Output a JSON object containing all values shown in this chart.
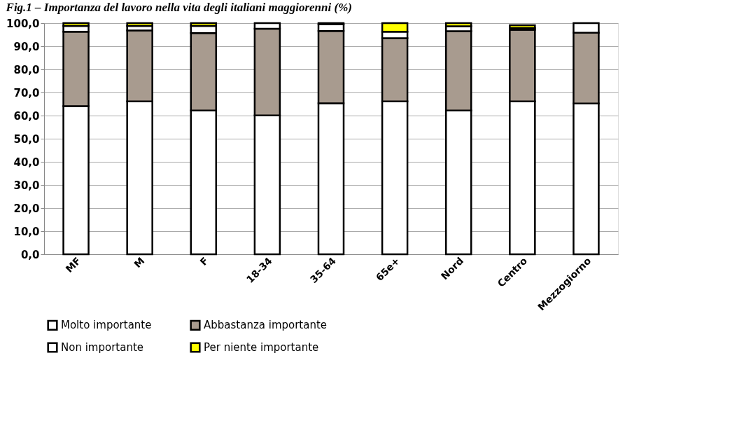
{
  "chart_data": {
    "type": "bar",
    "stacked": true,
    "title": "Fig.1 – Importanza del lavoro nella vita degli italiani maggiorenni (%)",
    "categories": [
      "MF",
      "M",
      "F",
      "18-34",
      "35-64",
      "65e+",
      "Nord",
      "Centro",
      "Mezzogiorno"
    ],
    "series": [
      {
        "name": "Molto importante",
        "color": "#ffffff",
        "values": [
          64.1,
          66.1,
          62.2,
          60.1,
          65.3,
          66.1,
          62.2,
          66.1,
          65.2
        ]
      },
      {
        "name": "Abbastanza importante",
        "color": "#a89b8f",
        "values": [
          32.2,
          30.7,
          33.5,
          37.5,
          31.3,
          27.4,
          34.3,
          31.0,
          30.6
        ]
      },
      {
        "name": "Non importante",
        "color": "#ffffff",
        "values": [
          2.5,
          2.0,
          3.1,
          2.4,
          2.9,
          2.8,
          2.1,
          0.8,
          4.2
        ]
      },
      {
        "name": "Per niente importante",
        "color": "#ffff00",
        "values": [
          1.2,
          1.2,
          1.2,
          null,
          0.5,
          3.7,
          1.4,
          1.2,
          null
        ]
      }
    ],
    "ylim": [
      0,
      100
    ],
    "yticks": [
      {
        "value": 0,
        "label": "0,0"
      },
      {
        "value": 10,
        "label": "10,0"
      },
      {
        "value": 20,
        "label": "20,0"
      },
      {
        "value": 30,
        "label": "30,0"
      },
      {
        "value": 40,
        "label": "40,0"
      },
      {
        "value": 50,
        "label": "50,0"
      },
      {
        "value": 60,
        "label": "60,0"
      },
      {
        "value": 70,
        "label": "70,0"
      },
      {
        "value": 80,
        "label": "80,0"
      },
      {
        "value": 90,
        "label": "90,0"
      },
      {
        "value": 100,
        "label": "100,0"
      }
    ],
    "grid": "y",
    "legend": "bottom"
  }
}
